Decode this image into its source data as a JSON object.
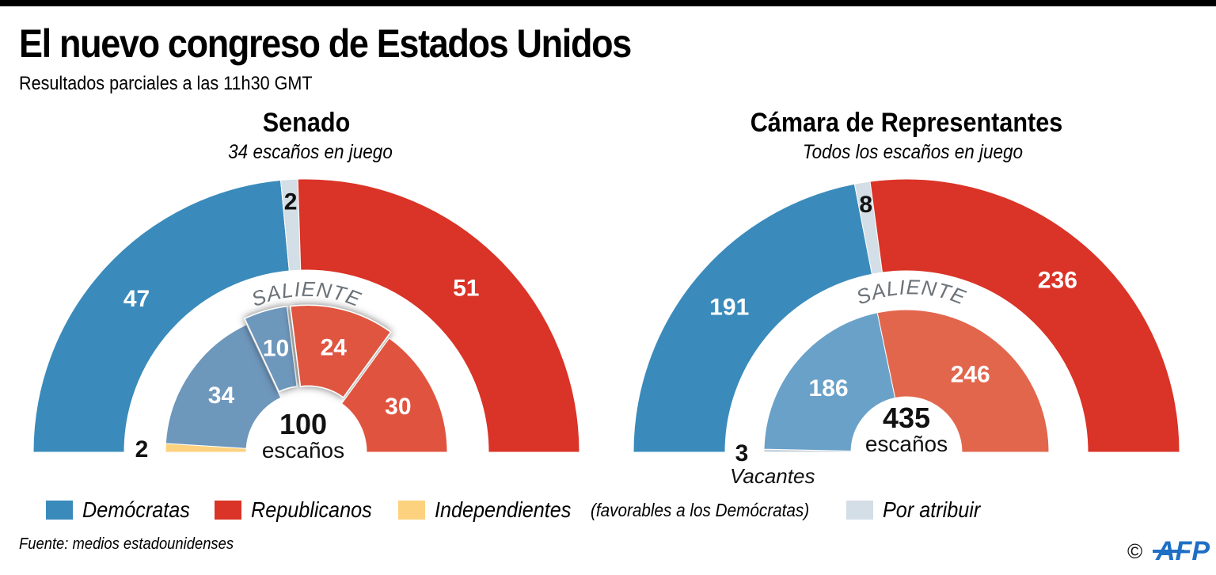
{
  "header": {
    "title": "El nuevo congreso de Estados Unidos",
    "subtitle": "Resultados parciales a las 11h30 GMT"
  },
  "colors": {
    "democrats": "#3A8BBB",
    "republicans": "#DA3327",
    "independents": "#FDD27E",
    "unassigned": "#D3DEE6",
    "democrats_outgoing_senate": "#6E97BC",
    "republicans_outgoing_senate": "#E0543F",
    "democrats_outgoing_house": "#6AA1C9",
    "republicans_outgoing_house": "#E2664C",
    "vacant": "#C9D3DA",
    "saliente_text": "#6B7278"
  },
  "chart_data": [
    {
      "type": "pie",
      "subtype": "semicircle-parliament",
      "title": "Senado",
      "subtitle": "34 escaños en juego",
      "total_seats": 100,
      "center_number": "100",
      "center_label": "escaños",
      "new_congress": {
        "segments": [
          {
            "party": "Demócratas",
            "value": 47,
            "label": "47",
            "color_key": "democrats"
          },
          {
            "party": "Por atribuir",
            "value": 2,
            "label": "2",
            "color_key": "unassigned"
          },
          {
            "party": "Republicanos",
            "value": 51,
            "label": "51",
            "color_key": "republicans"
          }
        ]
      },
      "outgoing": {
        "label": "SALIENTE",
        "segments": [
          {
            "party": "Independientes",
            "value": 2,
            "label": "2",
            "color_key": "independents",
            "in_play": false
          },
          {
            "party": "Demócratas",
            "value": 34,
            "label": "34",
            "color_key": "democrats_outgoing_senate",
            "in_play": false
          },
          {
            "party": "Demócratas",
            "value": 10,
            "label": "10",
            "color_key": "democrats_outgoing_senate",
            "in_play": true
          },
          {
            "party": "Republicanos",
            "value": 24,
            "label": "24",
            "color_key": "republicans_outgoing_senate",
            "in_play": true
          },
          {
            "party": "Republicanos",
            "value": 30,
            "label": "30",
            "color_key": "republicans_outgoing_senate",
            "in_play": false
          }
        ]
      }
    },
    {
      "type": "pie",
      "subtype": "semicircle-parliament",
      "title": "Cámara de Representantes",
      "subtitle": "Todos los escaños en juego",
      "total_seats": 435,
      "center_number": "435",
      "center_label": "escaños",
      "new_congress": {
        "segments": [
          {
            "party": "Demócratas",
            "value": 191,
            "label": "191",
            "color_key": "democrats"
          },
          {
            "party": "Por atribuir",
            "value": 8,
            "label": "8",
            "color_key": "unassigned"
          },
          {
            "party": "Republicanos",
            "value": 236,
            "label": "236",
            "color_key": "republicans"
          }
        ]
      },
      "outgoing": {
        "label": "SALIENTE",
        "segments": [
          {
            "party": "Vacantes",
            "value": 3,
            "label": "3",
            "note": "Vacantes",
            "color_key": "vacant",
            "in_play": false
          },
          {
            "party": "Demócratas",
            "value": 186,
            "label": "186",
            "color_key": "democrats_outgoing_house",
            "in_play": false
          },
          {
            "party": "Republicanos",
            "value": 246,
            "label": "246",
            "color_key": "republicans_outgoing_house",
            "in_play": false
          }
        ]
      }
    }
  ],
  "legend": {
    "items": [
      {
        "label": "Demócratas",
        "note": "",
        "color_key": "democrats"
      },
      {
        "label": "Republicanos",
        "note": "",
        "color_key": "republicans"
      },
      {
        "label": "Independientes",
        "note": "(favorables a los Demócratas)",
        "color_key": "independents"
      },
      {
        "label": "Por atribuir",
        "note": "",
        "color_key": "unassigned"
      }
    ]
  },
  "footer": {
    "source": "Fuente: medios estadounidenses",
    "copyright": "©",
    "logo": "AFP"
  }
}
